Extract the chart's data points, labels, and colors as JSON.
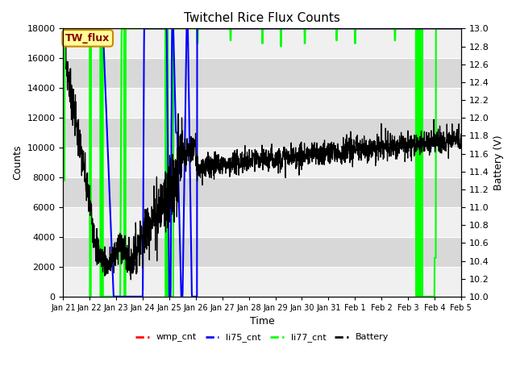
{
  "title": "Twitchel Rice Flux Counts",
  "xlabel": "Time",
  "ylabel_left": "Counts",
  "ylabel_right": "Battery (V)",
  "ylim_left": [
    0,
    18000
  ],
  "ylim_right": [
    10.0,
    13.0
  ],
  "yticks_left": [
    0,
    2000,
    4000,
    6000,
    8000,
    10000,
    12000,
    14000,
    16000,
    18000
  ],
  "yticks_right": [
    10.0,
    10.2,
    10.4,
    10.6,
    10.8,
    11.0,
    11.2,
    11.4,
    11.6,
    11.8,
    12.0,
    12.2,
    12.4,
    12.6,
    12.8,
    13.0
  ],
  "annotation_text": "TW_flux",
  "colors": {
    "wmp_cnt": "#ff0000",
    "li75_cnt": "#0000ff",
    "li77_cnt": "#00ff00",
    "battery": "#000000",
    "stripe_light": "#f0f0f0",
    "stripe_dark": "#d8d8d8",
    "annotation_bg": "#ffff99",
    "annotation_border": "#cc8800",
    "annotation_text": "#880000"
  },
  "legend_labels": [
    "wmp_cnt",
    "li75_cnt",
    "li77_cnt",
    "Battery"
  ],
  "n_points": 2000,
  "xlim": [
    0,
    15
  ],
  "xtick_positions": [
    0,
    1,
    2,
    3,
    4,
    5,
    6,
    7,
    8,
    9,
    10,
    11,
    12,
    13,
    14,
    15
  ],
  "xtick_labels": [
    "Jan 21",
    "Jan 22",
    "Jan 23",
    "Jan 24",
    "Jan 25",
    "Jan 26",
    "Jan 27",
    "Jan 28",
    "Jan 29",
    "Jan 30",
    "Jan 31",
    "Feb 1",
    "Feb 2",
    "Feb 3",
    "Feb 4",
    "Feb 5"
  ]
}
